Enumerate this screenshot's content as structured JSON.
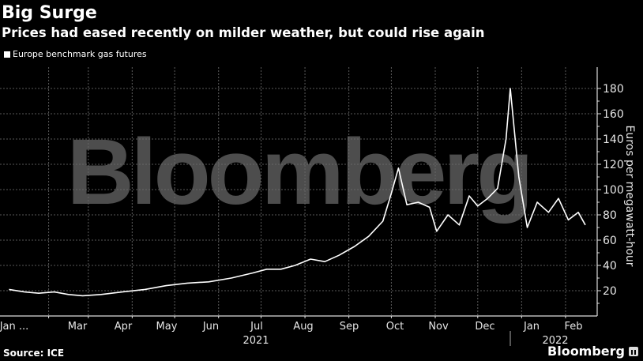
{
  "header": {
    "title": "Big Surge",
    "subtitle": "Prices had eased recently on milder weather, but could rise again"
  },
  "legend": {
    "label": "Europe benchmark gas futures"
  },
  "footer": {
    "source": "Source: ICE",
    "brand": "Bloomberg"
  },
  "watermark": "Bloomberg",
  "colors": {
    "background": "#000000",
    "line": "#ffffff",
    "grid": "#3a3a3a",
    "watermark": "#4d4d4d"
  },
  "chart_data": {
    "type": "line",
    "title": "Big Surge",
    "subtitle": "Prices had eased recently on milder weather, but could rise again",
    "xlabel": "",
    "ylabel": "Euros per megawatt-hour",
    "ylim": [
      0,
      190
    ],
    "yticks": [
      20,
      40,
      60,
      80,
      100,
      120,
      140,
      160,
      180
    ],
    "xtick_labels": [
      "Jan ...",
      "Mar",
      "Apr",
      "May",
      "Jun",
      "Jul",
      "Aug",
      "Sep",
      "Oct",
      "Nov",
      "Dec",
      "Jan",
      "Feb"
    ],
    "year_labels": [
      "2021",
      "2022"
    ],
    "grid": true,
    "legend_position": "top-left",
    "series": [
      {
        "name": "Europe benchmark gas futures",
        "x": [
          "2021-01-04",
          "2021-01-15",
          "2021-01-25",
          "2021-02-05",
          "2021-02-15",
          "2021-02-25",
          "2021-03-10",
          "2021-03-25",
          "2021-04-10",
          "2021-04-25",
          "2021-05-10",
          "2021-05-25",
          "2021-06-10",
          "2021-06-25",
          "2021-07-05",
          "2021-07-15",
          "2021-07-25",
          "2021-08-05",
          "2021-08-15",
          "2021-08-25",
          "2021-09-05",
          "2021-09-15",
          "2021-09-25",
          "2021-10-01",
          "2021-10-06",
          "2021-10-12",
          "2021-10-20",
          "2021-10-28",
          "2021-11-02",
          "2021-11-10",
          "2021-11-18",
          "2021-11-25",
          "2021-12-01",
          "2021-12-08",
          "2021-12-15",
          "2021-12-21",
          "2021-12-24",
          "2021-12-30",
          "2022-01-05",
          "2022-01-12",
          "2022-01-20",
          "2022-01-27",
          "2022-02-03",
          "2022-02-10",
          "2022-02-15"
        ],
        "values": [
          21,
          19,
          18,
          19,
          17,
          16,
          17,
          19,
          21,
          24,
          26,
          27,
          30,
          34,
          37,
          37,
          40,
          45,
          43,
          48,
          55,
          63,
          75,
          97,
          117,
          88,
          90,
          86,
          67,
          80,
          72,
          95,
          87,
          93,
          101,
          140,
          180,
          110,
          70,
          90,
          82,
          93,
          76,
          82,
          72
        ]
      }
    ]
  }
}
